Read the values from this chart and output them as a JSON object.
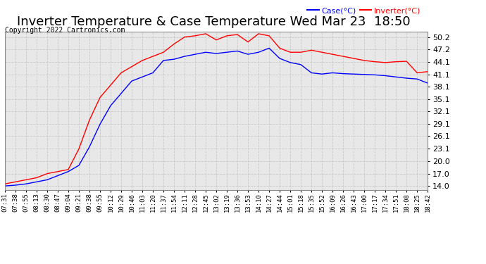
{
  "title": "Inverter Temperature & Case Temperature Wed Mar 23  18:50",
  "copyright": "Copyright 2022 Cartronics.com",
  "legend_case": "Case(°C)",
  "legend_inverter": "Inverter(°C)",
  "case_color": "blue",
  "inverter_color": "red",
  "yticks": [
    14.0,
    17.0,
    20.0,
    23.1,
    26.1,
    29.1,
    32.1,
    35.1,
    38.1,
    41.1,
    44.1,
    47.2,
    50.2
  ],
  "ylim": [
    13.0,
    51.5
  ],
  "background_color": "#ffffff",
  "plot_bg_color": "#e8e8e8",
  "grid_color": "#c8c8c8",
  "title_fontsize": 13,
  "xtick_labels": [
    "07:31",
    "07:38",
    "07:55",
    "08:13",
    "08:30",
    "08:47",
    "09:04",
    "09:21",
    "09:38",
    "09:55",
    "10:12",
    "10:29",
    "10:46",
    "11:03",
    "11:20",
    "11:37",
    "11:54",
    "12:11",
    "12:28",
    "12:45",
    "13:02",
    "13:19",
    "13:36",
    "13:53",
    "14:10",
    "14:27",
    "14:44",
    "15:01",
    "15:18",
    "15:35",
    "15:52",
    "16:09",
    "16:26",
    "16:43",
    "17:00",
    "17:17",
    "17:34",
    "17:51",
    "18:08",
    "18:25",
    "18:42"
  ],
  "inverter_temps": [
    14.5,
    15.0,
    15.5,
    16.0,
    17.0,
    17.5,
    18.0,
    23.0,
    30.0,
    35.5,
    38.5,
    41.5,
    43.0,
    44.5,
    45.5,
    46.5,
    48.5,
    50.2,
    50.5,
    51.0,
    49.5,
    50.5,
    50.8,
    49.0,
    51.0,
    50.5,
    47.5,
    46.5,
    46.5,
    47.0,
    46.5,
    46.0,
    45.5,
    45.0,
    44.5,
    44.2,
    44.0,
    44.2,
    44.3,
    41.5,
    41.8
  ],
  "case_temps": [
    14.0,
    14.2,
    14.5,
    15.0,
    15.5,
    16.5,
    17.5,
    19.0,
    23.5,
    29.0,
    33.5,
    36.5,
    39.5,
    40.5,
    41.5,
    44.5,
    44.8,
    45.5,
    46.0,
    46.5,
    46.2,
    46.5,
    46.8,
    46.0,
    46.5,
    47.5,
    45.0,
    44.0,
    43.5,
    41.5,
    41.2,
    41.5,
    41.3,
    41.2,
    41.1,
    41.0,
    40.8,
    40.5,
    40.2,
    40.0,
    39.0
  ]
}
